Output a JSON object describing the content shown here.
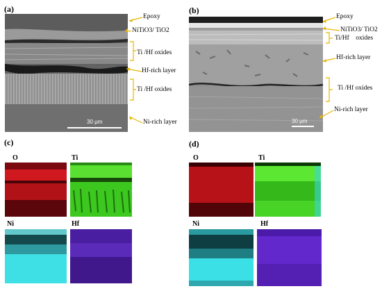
{
  "panels": {
    "a": {
      "label": "(a)",
      "scalebar": "30 μm",
      "annotations": [
        "Epoxy",
        "NiTiO3/ TiO2",
        "Ti /Hf oxides",
        "Hf-rich layer",
        "Ti /Hf oxides",
        "Ni-rich layer"
      ]
    },
    "b": {
      "label": "(b)",
      "scalebar": "30 μm",
      "annotations": [
        "Epoxy",
        "NiTiO3/ TiO2",
        "Ti/Hf    oxides",
        "Hf-rich layer",
        "Ti /Hf oxides",
        "Ni-rich layer"
      ]
    },
    "c": {
      "label": "(c)",
      "maps": [
        "O",
        "Ti",
        "Ni",
        "Hf"
      ]
    },
    "d": {
      "label": "(d)",
      "maps": [
        "O",
        "Ti",
        "Ni",
        "Hf"
      ]
    }
  },
  "colors": {
    "annotation_arrow": "#e8b400",
    "oxygen": "#c8141e",
    "titanium": "#3cd21e",
    "nickel": "#38d8dc",
    "hafnium": "#6428c8"
  }
}
